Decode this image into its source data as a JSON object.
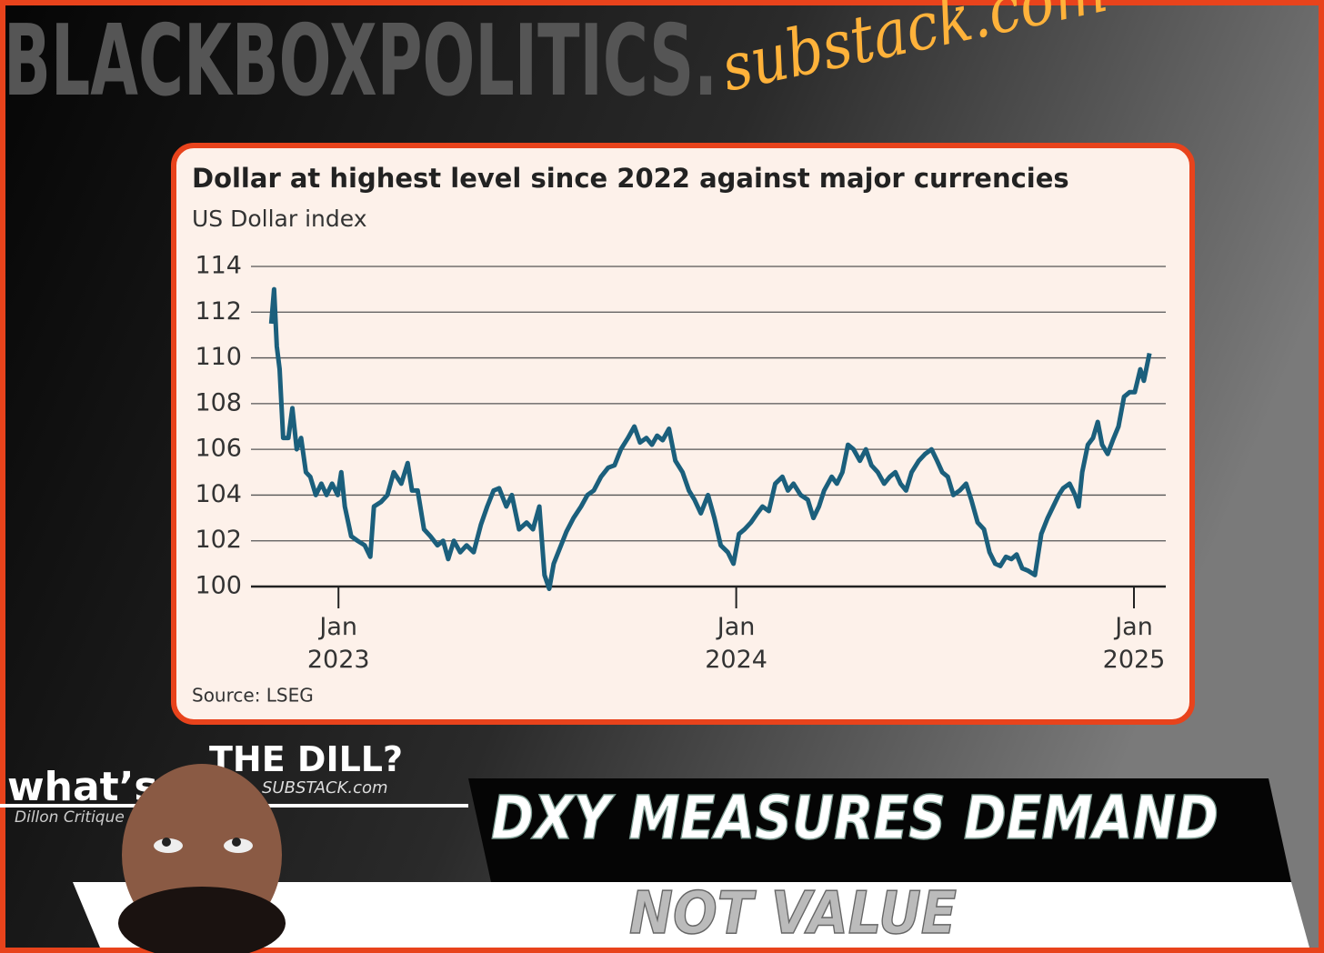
{
  "branding": {
    "site": "BLACKBOXPOLITICS.",
    "site_suffix": "substack.com",
    "logo_top": "THE DILL?",
    "logo_left": "what’s",
    "logo_sub": "SUBSTACK.com",
    "logo_author": "Dillon Critique"
  },
  "headline": {
    "line1": "DXY MEASURES DEMAND",
    "line2": "NOT VALUE"
  },
  "chart_data": {
    "type": "line",
    "title": "Dollar at highest level since 2022 against major currencies",
    "subtitle": "US Dollar index",
    "source": "Source: LSEG",
    "color": "#1b5f7c",
    "grid": true,
    "xlim": [
      2022.78,
      2025.08
    ],
    "xticks": [
      {
        "value": 2023,
        "label": "Jan 2023"
      },
      {
        "value": 2024,
        "label": "Jan 2024"
      },
      {
        "value": 2025,
        "label": "Jan 2025"
      }
    ],
    "ylim": [
      100,
      114
    ],
    "yticks": [
      100,
      102,
      104,
      106,
      108,
      110,
      112,
      114
    ],
    "x": [
      2022.831,
      2022.838,
      2022.845,
      2022.852,
      2022.861,
      2022.874,
      2022.884,
      2022.895,
      2022.906,
      2022.918,
      2022.929,
      2022.943,
      2022.957,
      2022.97,
      2022.984,
      2022.998,
      2023.007,
      2023.016,
      2023.032,
      2023.048,
      2023.066,
      2023.08,
      2023.089,
      2023.107,
      2023.123,
      2023.139,
      2023.158,
      2023.174,
      2023.185,
      2023.199,
      2023.215,
      2023.231,
      2023.249,
      2023.263,
      2023.276,
      2023.29,
      2023.306,
      2023.322,
      2023.34,
      2023.358,
      2023.374,
      2023.39,
      2023.404,
      2023.422,
      2023.436,
      2023.454,
      2023.473,
      2023.489,
      2023.505,
      2023.518,
      2023.53,
      2023.541,
      2023.557,
      2023.573,
      2023.591,
      2023.61,
      2023.626,
      2023.642,
      2023.66,
      2023.678,
      2023.694,
      2023.71,
      2023.728,
      2023.744,
      2023.758,
      2023.774,
      2023.788,
      2023.801,
      2023.815,
      2023.831,
      2023.847,
      2023.865,
      2023.881,
      2023.895,
      2023.911,
      2023.929,
      2023.945,
      2023.961,
      2023.979,
      2023.993,
      2024.007,
      2024.021,
      2024.037,
      2024.053,
      2024.066,
      2024.082,
      2024.098,
      2024.116,
      2024.13,
      2024.144,
      2024.162,
      2024.18,
      2024.194,
      2024.208,
      2024.221,
      2024.24,
      2024.253,
      2024.267,
      2024.281,
      2024.295,
      2024.311,
      2024.326,
      2024.34,
      2024.356,
      2024.372,
      2024.386,
      2024.4,
      2024.413,
      2024.427,
      2024.441,
      2024.459,
      2024.475,
      2024.491,
      2024.505,
      2024.518,
      2024.532,
      2024.546,
      2024.562,
      2024.578,
      2024.591,
      2024.607,
      2024.623,
      2024.637,
      2024.651,
      2024.664,
      2024.678,
      2024.692,
      2024.705,
      2024.719,
      2024.733,
      2024.751,
      2024.767,
      2024.783,
      2024.797,
      2024.811,
      2024.822,
      2024.838,
      2024.852,
      2024.861,
      2024.87,
      2024.884,
      2024.897,
      2024.909,
      2024.92,
      2024.934,
      2024.947,
      2024.961,
      2024.975,
      2024.989,
      2025.002,
      2025.016,
      2025.025,
      2025.039
    ],
    "values": [
      111.5,
      113,
      110.5,
      109.5,
      106.5,
      106.5,
      107.8,
      106,
      106.5,
      105,
      104.8,
      104,
      104.5,
      104,
      104.5,
      104,
      105,
      103.5,
      102.2,
      102,
      101.8,
      101.3,
      103.5,
      103.7,
      104,
      105,
      104.5,
      105.4,
      104.2,
      104.2,
      102.5,
      102.2,
      101.8,
      102,
      101.2,
      102,
      101.5,
      101.8,
      101.5,
      102.7,
      103.5,
      104.2,
      104.3,
      103.5,
      104,
      102.5,
      102.8,
      102.5,
      103.5,
      100.5,
      99.9,
      101,
      101.7,
      102.4,
      103,
      103.5,
      104,
      104.2,
      104.8,
      105.2,
      105.3,
      106,
      106.5,
      107,
      106.3,
      106.5,
      106.2,
      106.6,
      106.4,
      106.9,
      105.5,
      105,
      104.2,
      103.8,
      103.2,
      104,
      103,
      101.8,
      101.5,
      101,
      102.3,
      102.5,
      102.8,
      103.2,
      103.5,
      103.3,
      104.5,
      104.8,
      104.2,
      104.5,
      104,
      103.8,
      103,
      103.5,
      104.2,
      104.8,
      104.5,
      105,
      106.2,
      106,
      105.5,
      106,
      105.3,
      105,
      104.5,
      104.8,
      105,
      104.5,
      104.2,
      105,
      105.5,
      105.8,
      106,
      105.5,
      105,
      104.8,
      104,
      104.2,
      104.5,
      103.8,
      102.8,
      102.5,
      101.5,
      101,
      100.9,
      101.3,
      101.2,
      101.4,
      100.8,
      100.7,
      100.5,
      102.3,
      103,
      103.5,
      104,
      104.3,
      104.5,
      104,
      103.5,
      105,
      106.2,
      106.5,
      107.2,
      106.2,
      105.8,
      106.4,
      107,
      108.3,
      108.5,
      108.5,
      109.5,
      109,
      110.2
    ]
  }
}
